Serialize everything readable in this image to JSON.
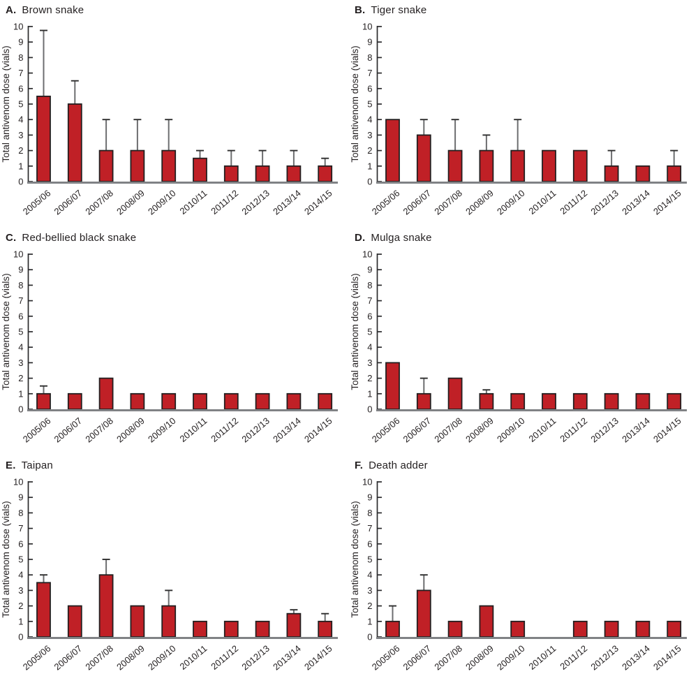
{
  "colors": {
    "bar_fill": "#c02026",
    "bar_stroke": "#231f20",
    "error_stem": "#6d6e70",
    "error_cap": "#2e2e2e",
    "baseline": "#808285",
    "axis": "#2a2a2c",
    "text": "#231f20",
    "background": "#ffffff"
  },
  "chart_data": [
    {
      "type": "bar",
      "panel_letter": "A.",
      "title": "Brown snake",
      "xlabel": "",
      "ylabel": "Total antivenom dose (vials)",
      "ylim": [
        0,
        10
      ],
      "yticks": [
        0,
        1,
        2,
        3,
        4,
        5,
        6,
        7,
        8,
        9,
        10
      ],
      "grid": false,
      "legend": "none",
      "categories": [
        "2005/06",
        "2006/07",
        "2007/08",
        "2008/09",
        "2009/10",
        "2010/11",
        "2011/12",
        "2012/13",
        "2013/14",
        "2014/15"
      ],
      "values": [
        5.5,
        5,
        2,
        2,
        2,
        1.5,
        1,
        1,
        1,
        1
      ],
      "error_bar_top": [
        9.75,
        6.5,
        4,
        4,
        4,
        2,
        2,
        2,
        2,
        1.5
      ]
    },
    {
      "type": "bar",
      "panel_letter": "B.",
      "title": "Tiger snake",
      "xlabel": "",
      "ylabel": "Total antivenom dose (vials)",
      "ylim": [
        0,
        10
      ],
      "yticks": [
        0,
        1,
        2,
        3,
        4,
        5,
        6,
        7,
        8,
        9,
        10
      ],
      "grid": false,
      "legend": "none",
      "categories": [
        "2005/06",
        "2006/07",
        "2007/08",
        "2008/09",
        "2009/10",
        "2010/11",
        "2011/12",
        "2012/13",
        "2013/14",
        "2014/15"
      ],
      "values": [
        4,
        3,
        2,
        2,
        2,
        2,
        2,
        1,
        1,
        1
      ],
      "error_bar_top": [
        null,
        4,
        4,
        3,
        4,
        null,
        null,
        2,
        null,
        2
      ]
    },
    {
      "type": "bar",
      "panel_letter": "C.",
      "title": "Red-bellied black snake",
      "xlabel": "",
      "ylabel": "Total antivenom dose (vials)",
      "ylim": [
        0,
        10
      ],
      "yticks": [
        0,
        1,
        2,
        3,
        4,
        5,
        6,
        7,
        8,
        9,
        10
      ],
      "grid": false,
      "legend": "none",
      "categories": [
        "2005/06",
        "2006/07",
        "2007/08",
        "2008/09",
        "2009/10",
        "2010/11",
        "2011/12",
        "2012/13",
        "2013/14",
        "2014/15"
      ],
      "values": [
        1,
        1,
        2,
        1,
        1,
        1,
        1,
        1,
        1,
        1
      ],
      "error_bar_top": [
        1.5,
        null,
        null,
        null,
        null,
        null,
        null,
        null,
        null,
        null
      ]
    },
    {
      "type": "bar",
      "panel_letter": "D.",
      "title": "Mulga snake",
      "xlabel": "",
      "ylabel": "Total antivenom dose (vials)",
      "ylim": [
        0,
        10
      ],
      "yticks": [
        0,
        1,
        2,
        3,
        4,
        5,
        6,
        7,
        8,
        9,
        10
      ],
      "grid": false,
      "legend": "none",
      "categories": [
        "2005/06",
        "2006/07",
        "2007/08",
        "2008/09",
        "2009/10",
        "2010/11",
        "2011/12",
        "2012/13",
        "2013/14",
        "2014/15"
      ],
      "values": [
        3,
        1,
        2,
        1,
        1,
        1,
        1,
        1,
        1,
        1
      ],
      "error_bar_top": [
        null,
        2,
        null,
        1.25,
        null,
        null,
        null,
        null,
        null,
        null
      ]
    },
    {
      "type": "bar",
      "panel_letter": "E.",
      "title": "Taipan",
      "xlabel": "",
      "ylabel": "Total antivenom dose (vials)",
      "ylim": [
        0,
        10
      ],
      "yticks": [
        0,
        1,
        2,
        3,
        4,
        5,
        6,
        7,
        8,
        9,
        10
      ],
      "grid": false,
      "legend": "none",
      "categories": [
        "2005/06",
        "2006/07",
        "2007/08",
        "2008/09",
        "2009/10",
        "2010/11",
        "2011/12",
        "2012/13",
        "2013/14",
        "2014/15"
      ],
      "values": [
        3.5,
        2,
        4,
        2,
        2,
        1,
        1,
        1,
        1.5,
        1
      ],
      "error_bar_top": [
        4,
        null,
        5,
        null,
        3,
        null,
        null,
        null,
        1.75,
        1.5
      ]
    },
    {
      "type": "bar",
      "panel_letter": "F.",
      "title": "Death adder",
      "xlabel": "",
      "ylabel": "Total antivenom dose (vials)",
      "ylim": [
        0,
        10
      ],
      "yticks": [
        0,
        1,
        2,
        3,
        4,
        5,
        6,
        7,
        8,
        9,
        10
      ],
      "grid": false,
      "legend": "none",
      "categories": [
        "2005/06",
        "2006/07",
        "2007/08",
        "2008/09",
        "2009/10",
        "2010/11",
        "2011/12",
        "2012/13",
        "2013/14",
        "2014/15"
      ],
      "values": [
        1,
        3,
        1,
        2,
        1,
        0,
        1,
        1,
        1,
        1
      ],
      "error_bar_top": [
        2,
        4,
        null,
        null,
        null,
        null,
        null,
        null,
        null,
        null
      ]
    }
  ]
}
